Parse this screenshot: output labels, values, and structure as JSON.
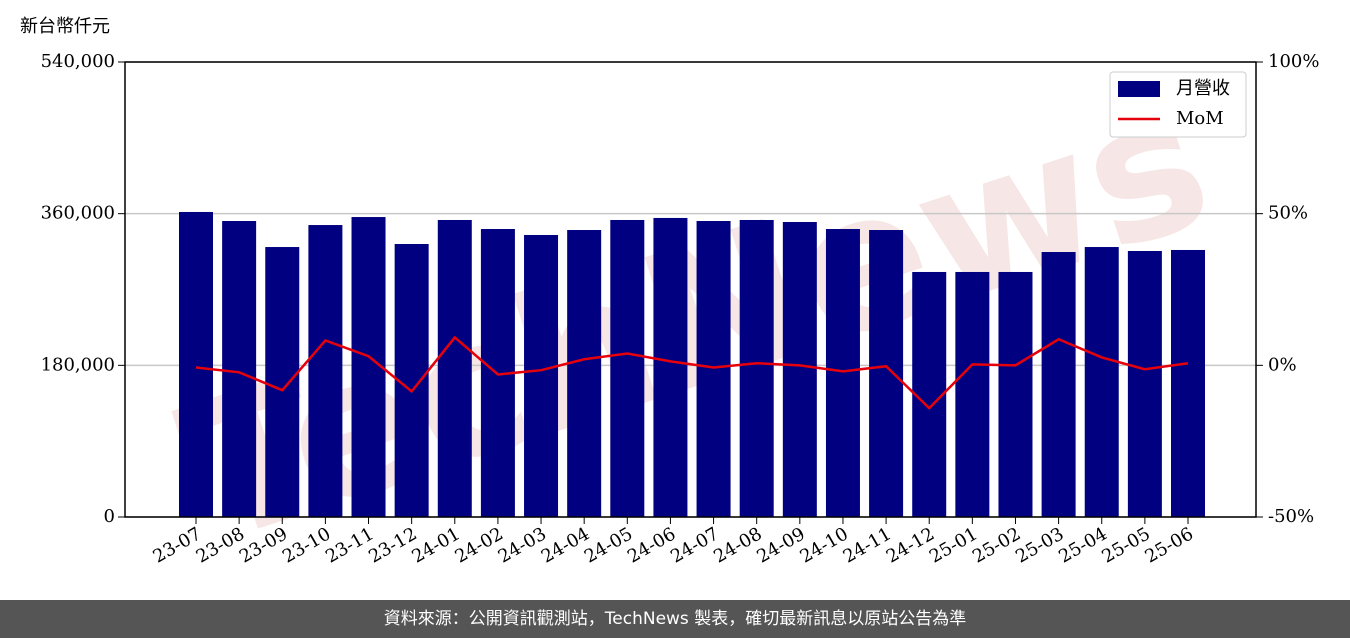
{
  "chart_data": {
    "type": "bar",
    "y_axis_label": "新台幣仟元",
    "watermark": "TechNews",
    "categories": [
      "23-07",
      "23-08",
      "23-09",
      "23-10",
      "23-11",
      "23-12",
      "24-01",
      "24-02",
      "24-03",
      "24-04",
      "24-05",
      "24-06",
      "24-07",
      "24-08",
      "24-09",
      "24-10",
      "24-11",
      "24-12",
      "25-01",
      "25-02",
      "25-03",
      "25-04",
      "25-05",
      "25-06"
    ],
    "series": [
      {
        "name": "月營收",
        "type": "bar",
        "color": "#000080",
        "values": [
          362000,
          351300,
          320400,
          346500,
          356000,
          324000,
          352500,
          341800,
          334700,
          340600,
          352500,
          354900,
          351300,
          352500,
          350100,
          341800,
          340600,
          290800,
          290800,
          290800,
          314500,
          320400,
          315700,
          316900
        ]
      },
      {
        "name": "MoM",
        "type": "line",
        "axis": "y2",
        "color": "#e6000b",
        "values": [
          -0.7,
          -2.3,
          -8.2,
          8.2,
          3.0,
          -8.6,
          9.2,
          -3.0,
          -1.6,
          2.0,
          3.9,
          1.3,
          -0.7,
          0.7,
          0,
          -2.0,
          -0.3,
          -14.1,
          0.3,
          0,
          8.6,
          2.6,
          -1.3,
          0.7
        ]
      }
    ],
    "ylim": [
      0,
      540000
    ],
    "yticks": [
      0,
      {
        "value": 180000,
        "label": "180,000"
      },
      {
        "value": 360000,
        "label": "360,000"
      },
      {
        "value": 540000,
        "label": "540,000"
      }
    ],
    "y2lim": [
      -50,
      100
    ],
    "y2ticks": [
      {
        "value": -50,
        "label": "-50%"
      },
      {
        "value": 0,
        "label": "0%"
      },
      {
        "value": 50,
        "label": "50%"
      },
      {
        "value": 100,
        "label": "100%"
      }
    ],
    "grid": true,
    "legend": "upper right",
    "footer": "資料來源：公開資訊觀測站，TechNews 製表，確切最新訊息以原站公告為準"
  }
}
